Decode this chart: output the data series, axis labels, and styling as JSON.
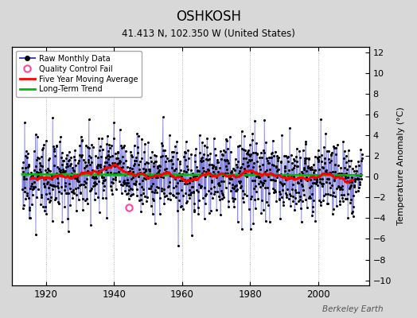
{
  "title": "OSHKOSH",
  "subtitle": "41.413 N, 102.350 W (United States)",
  "ylabel": "Temperature Anomaly (°C)",
  "watermark": "Berkeley Earth",
  "ylim": [
    -10.5,
    12.5
  ],
  "yticks": [
    -10,
    -8,
    -6,
    -4,
    -2,
    0,
    2,
    4,
    6,
    8,
    10,
    12
  ],
  "xlim": [
    1910,
    2015
  ],
  "xticks": [
    1920,
    1940,
    1960,
    1980,
    2000
  ],
  "background_color": "#d8d8d8",
  "plot_bg_color": "#ffffff",
  "raw_line_color": "#4444cc",
  "raw_marker_color": "#000000",
  "qc_fail_color": "#ff44aa",
  "moving_avg_color": "#ff0000",
  "trend_color": "#00bb00",
  "seed": 12,
  "n_years": 100,
  "start_year": 1913,
  "qc_x": 1944.5,
  "qc_y": -3.0
}
